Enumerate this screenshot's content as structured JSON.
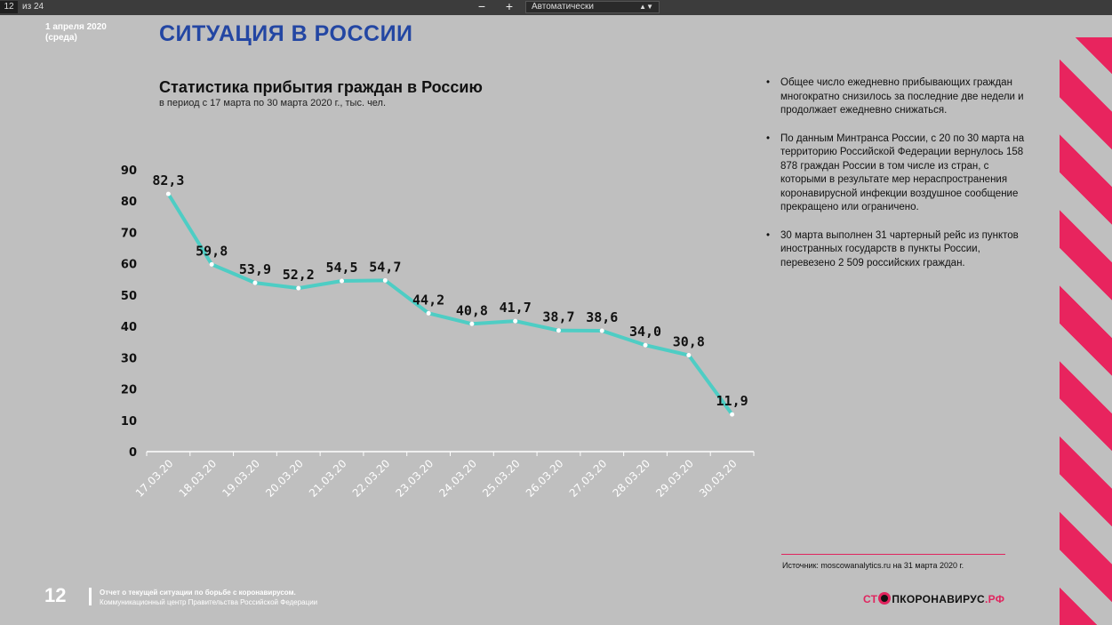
{
  "viewer": {
    "page": "12",
    "total": "из 24",
    "zoom_out": "−",
    "zoom_in": "+",
    "zoom": "Автоматически"
  },
  "slide": {
    "date_line1": "1 апреля 2020",
    "date_line2": "(среда)",
    "title": "СИТУАЦИЯ В РОССИИ",
    "bullets": [
      "Общее число ежедневно прибывающих граждан многократно снизилось за последние две недели и продолжает ежедневно снижаться.",
      "По данным Минтранса России, с 20 по 30 марта на территорию Российской Федерации вернулось 158 878 граждан России в том числе из стран, с которыми в результате мер нераспространения коронавирусной инфекции воздушное сообщение прекращено или ограничено.",
      "30 марта выполнен 31 чартерный рейс из пунктов иностранных государств в пункты России, перевезено 2 509 российских граждан."
    ],
    "source": "Источник: moscowanalytics.ru на 31 марта 2020 г.",
    "page_number": "12",
    "footer_line1": "Отчет о текущей ситуации по борьбе с коронавирусом.",
    "footer_line2": "Коммуникационный центр Правительства Российской Федерации",
    "logo_left": "СТ",
    "logo_right": "ПКОРОНАВИРУС",
    "logo_suffix": ".РФ"
  },
  "colors": {
    "title": "#2346a3",
    "line": "#4ecdc4",
    "accent": "#e8245e"
  },
  "chart_data": {
    "type": "line",
    "title": "Статистика прибытия граждан в Россию",
    "subtitle": "в период с 17 марта по 30 марта 2020 г., тыс. чел.",
    "categories": [
      "17.03.20",
      "18.03.20",
      "19.03.20",
      "20.03.20",
      "21.03.20",
      "22.03.20",
      "23.03.20",
      "24.03.20",
      "25.03.20",
      "26.03.20",
      "27.03.20",
      "28.03.20",
      "29.03.20",
      "30.03.20"
    ],
    "values": [
      82.3,
      59.8,
      53.9,
      52.2,
      54.5,
      54.7,
      44.2,
      40.8,
      41.7,
      38.7,
      38.6,
      34.0,
      30.8,
      11.9
    ],
    "value_labels": [
      "82,3",
      "59,8",
      "53,9",
      "52,2",
      "54,5",
      "54,7",
      "44,2",
      "40,8",
      "41,7",
      "38,7",
      "38,6",
      "34,0",
      "30,8",
      "11,9"
    ],
    "yticks": [
      0,
      10,
      20,
      30,
      40,
      50,
      60,
      70,
      80,
      90
    ],
    "ylim": [
      0,
      90
    ],
    "grid": false
  }
}
